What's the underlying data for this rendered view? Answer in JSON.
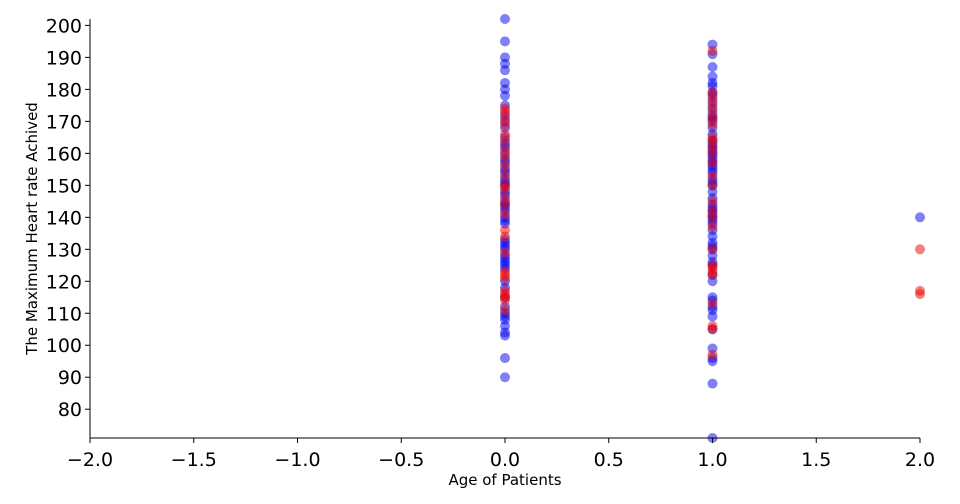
{
  "chart_data": {
    "type": "scatter",
    "title": "",
    "xlabel": "Age of Patients",
    "ylabel": "The Maximum Heart rate Achived",
    "xlim": [
      -2.0,
      2.0
    ],
    "ylim": [
      71,
      202
    ],
    "x_ticks": [
      "−2.0",
      "−1.5",
      "−1.0",
      "−0.5",
      "0.0",
      "0.5",
      "1.0",
      "1.5",
      "2.0"
    ],
    "x_tick_values": [
      -2.0,
      -1.5,
      -1.0,
      -0.5,
      0.0,
      0.5,
      1.0,
      1.5,
      2.0
    ],
    "y_ticks": [
      "80",
      "90",
      "100",
      "110",
      "120",
      "130",
      "140",
      "150",
      "160",
      "170",
      "180",
      "190",
      "200"
    ],
    "y_tick_values": [
      80,
      90,
      100,
      110,
      120,
      130,
      140,
      150,
      160,
      170,
      180,
      190,
      200
    ],
    "grid": false,
    "legend": "none",
    "series": [
      {
        "color": "#0000ee",
        "opacity": 0.5,
        "points": [
          [
            0,
            202
          ],
          [
            0,
            195
          ],
          [
            0,
            190
          ],
          [
            0,
            188
          ],
          [
            0,
            186
          ],
          [
            0,
            182
          ],
          [
            0,
            180
          ],
          [
            0,
            178
          ],
          [
            0,
            175
          ],
          [
            0,
            172
          ],
          [
            0,
            170
          ],
          [
            0,
            168
          ],
          [
            0,
            165
          ],
          [
            0,
            163
          ],
          [
            0,
            162
          ],
          [
            0,
            160
          ],
          [
            0,
            158
          ],
          [
            0,
            157
          ],
          [
            0,
            155
          ],
          [
            0,
            154
          ],
          [
            0,
            152
          ],
          [
            0,
            151
          ],
          [
            0,
            150
          ],
          [
            0,
            148
          ],
          [
            0,
            147
          ],
          [
            0,
            145
          ],
          [
            0,
            144
          ],
          [
            0,
            143
          ],
          [
            0,
            142
          ],
          [
            0,
            140
          ],
          [
            0,
            139
          ],
          [
            0,
            138
          ],
          [
            0,
            133
          ],
          [
            0,
            132
          ],
          [
            0,
            131
          ],
          [
            0,
            130
          ],
          [
            0,
            128
          ],
          [
            0,
            127
          ],
          [
            0,
            126
          ],
          [
            0,
            125
          ],
          [
            0,
            124
          ],
          [
            0,
            120
          ],
          [
            0,
            118
          ],
          [
            0,
            115
          ],
          [
            0,
            112
          ],
          [
            0,
            110
          ],
          [
            0,
            109
          ],
          [
            0,
            108
          ],
          [
            0,
            106
          ],
          [
            0,
            104
          ],
          [
            0,
            103
          ],
          [
            0,
            96
          ],
          [
            0,
            90
          ],
          [
            1,
            194
          ],
          [
            1,
            191
          ],
          [
            1,
            187
          ],
          [
            1,
            184
          ],
          [
            1,
            182
          ],
          [
            1,
            181
          ],
          [
            1,
            179
          ],
          [
            1,
            178
          ],
          [
            1,
            176
          ],
          [
            1,
            174
          ],
          [
            1,
            172
          ],
          [
            1,
            171
          ],
          [
            1,
            170
          ],
          [
            1,
            168
          ],
          [
            1,
            166
          ],
          [
            1,
            164
          ],
          [
            1,
            163
          ],
          [
            1,
            162
          ],
          [
            1,
            161
          ],
          [
            1,
            160
          ],
          [
            1,
            159
          ],
          [
            1,
            158
          ],
          [
            1,
            157
          ],
          [
            1,
            156
          ],
          [
            1,
            155
          ],
          [
            1,
            154
          ],
          [
            1,
            152
          ],
          [
            1,
            151
          ],
          [
            1,
            150
          ],
          [
            1,
            148
          ],
          [
            1,
            146
          ],
          [
            1,
            144
          ],
          [
            1,
            143
          ],
          [
            1,
            142
          ],
          [
            1,
            141
          ],
          [
            1,
            140
          ],
          [
            1,
            139
          ],
          [
            1,
            138
          ],
          [
            1,
            136
          ],
          [
            1,
            134
          ],
          [
            1,
            132
          ],
          [
            1,
            131
          ],
          [
            1,
            130
          ],
          [
            1,
            128
          ],
          [
            1,
            126
          ],
          [
            1,
            125
          ],
          [
            1,
            122
          ],
          [
            1,
            120
          ],
          [
            1,
            115
          ],
          [
            1,
            114
          ],
          [
            1,
            112
          ],
          [
            1,
            111
          ],
          [
            1,
            109
          ],
          [
            1,
            105
          ],
          [
            1,
            99
          ],
          [
            1,
            96
          ],
          [
            1,
            95
          ],
          [
            1,
            88
          ],
          [
            1,
            71
          ],
          [
            2,
            140
          ]
        ]
      },
      {
        "color": "#ee0000",
        "opacity": 0.5,
        "points": [
          [
            0,
            174
          ],
          [
            0,
            173
          ],
          [
            0,
            171
          ],
          [
            0,
            169
          ],
          [
            0,
            166
          ],
          [
            0,
            164
          ],
          [
            0,
            161
          ],
          [
            0,
            159
          ],
          [
            0,
            156
          ],
          [
            0,
            153
          ],
          [
            0,
            150
          ],
          [
            0,
            149
          ],
          [
            0,
            146
          ],
          [
            0,
            144
          ],
          [
            0,
            141
          ],
          [
            0,
            136
          ],
          [
            0,
            134
          ],
          [
            0,
            129
          ],
          [
            0,
            123
          ],
          [
            0,
            122
          ],
          [
            0,
            121
          ],
          [
            0,
            117
          ],
          [
            0,
            116
          ],
          [
            0,
            115
          ],
          [
            0,
            114
          ],
          [
            0,
            111
          ],
          [
            1,
            192
          ],
          [
            1,
            179
          ],
          [
            1,
            177
          ],
          [
            1,
            175
          ],
          [
            1,
            173
          ],
          [
            1,
            171
          ],
          [
            1,
            169
          ],
          [
            1,
            165
          ],
          [
            1,
            164
          ],
          [
            1,
            162
          ],
          [
            1,
            160
          ],
          [
            1,
            157
          ],
          [
            1,
            153
          ],
          [
            1,
            150
          ],
          [
            1,
            145
          ],
          [
            1,
            142
          ],
          [
            1,
            140
          ],
          [
            1,
            137
          ],
          [
            1,
            130
          ],
          [
            1,
            125
          ],
          [
            1,
            124
          ],
          [
            1,
            123
          ],
          [
            1,
            122
          ],
          [
            1,
            113
          ],
          [
            1,
            106
          ],
          [
            1,
            105
          ],
          [
            1,
            97
          ],
          [
            2,
            130
          ],
          [
            2,
            117
          ],
          [
            2,
            116
          ]
        ]
      }
    ]
  }
}
